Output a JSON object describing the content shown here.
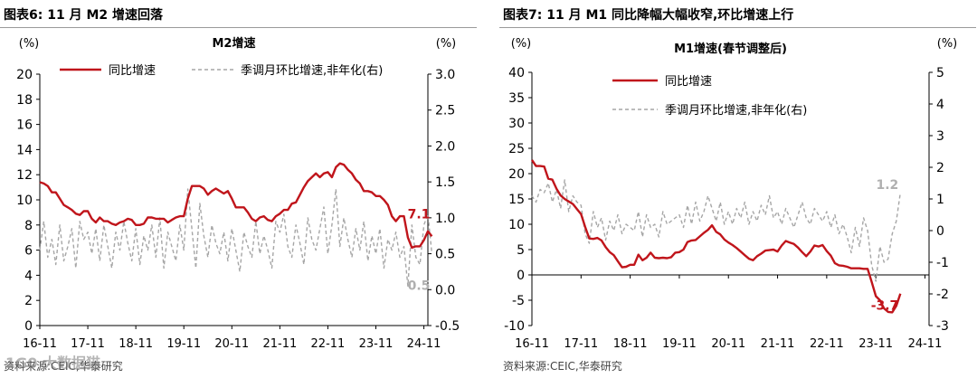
{
  "figures": [
    {
      "figure_title": "图表6:   11 月 M2 增速回落",
      "source": "资料来源:CEIC,华泰研究",
      "chart_data": {
        "type": "line",
        "title": "M2增速",
        "left_unit": "(%)",
        "right_unit": "(%)",
        "ylim": [
          0,
          20
        ],
        "y_ticks": [
          "0",
          "2",
          "4",
          "6",
          "8",
          "10",
          "12",
          "14",
          "16",
          "18",
          "20"
        ],
        "y2lim": [
          -0.5,
          3.0
        ],
        "y2_ticks": [
          "-0.5",
          "0.0",
          "0.5",
          "1.0",
          "1.5",
          "2.0",
          "2.5",
          "3.0"
        ],
        "x_ticks": [
          "16-11",
          "17-11",
          "18-11",
          "19-11",
          "20-11",
          "21-11",
          "22-11",
          "23-11",
          "24-11"
        ],
        "grid": false,
        "legend_position": "top",
        "series": [
          {
            "name": "同比增速",
            "axis": "left",
            "color": "#c0151b",
            "style": "solid",
            "x_start": "2016-11",
            "values": [
              11.4,
              11.3,
              11.1,
              10.6,
              10.6,
              10.1,
              9.6,
              9.4,
              9.2,
              8.9,
              8.8,
              9.1,
              9.1,
              8.5,
              8.2,
              8.6,
              8.3,
              8.3,
              8.1,
              8.0,
              8.2,
              8.3,
              8.5,
              8.4,
              8.0,
              8.0,
              8.1,
              8.6,
              8.6,
              8.5,
              8.5,
              8.5,
              8.2,
              8.4,
              8.6,
              8.7,
              8.7,
              10.1,
              11.1,
              11.1,
              11.1,
              10.9,
              10.4,
              10.7,
              10.9,
              10.7,
              10.5,
              10.7,
              10.1,
              9.4,
              9.4,
              9.4,
              9.0,
              8.5,
              8.3,
              8.6,
              8.7,
              8.4,
              8.3,
              8.7,
              8.9,
              9.2,
              9.2,
              9.7,
              9.8,
              10.4,
              11.0,
              11.5,
              11.8,
              12.1,
              11.8,
              12.1,
              12.2,
              11.8,
              12.6,
              12.9,
              12.8,
              12.4,
              12.1,
              11.6,
              11.3,
              10.7,
              10.7,
              10.6,
              10.3,
              10.3,
              10.0,
              9.6,
              8.7,
              8.3,
              8.7,
              8.7,
              7.0,
              6.2,
              6.3,
              6.3,
              6.8,
              7.5,
              7.1
            ],
            "end_label": "7.1"
          },
          {
            "name": "季调月环比增速,非年化(右)",
            "axis": "right",
            "color": "#a6a6a6",
            "style": "dashed",
            "x_start": "2016-11",
            "values": [
              0.55,
              0.95,
              0.45,
              0.7,
              0.35,
              0.9,
              0.4,
              0.6,
              0.85,
              0.3,
              0.95,
              0.7,
              0.8,
              0.5,
              0.85,
              0.4,
              0.9,
              0.6,
              0.3,
              0.8,
              0.55,
              0.95,
              0.65,
              0.4,
              0.85,
              0.35,
              0.75,
              0.55,
              0.9,
              0.45,
              1.0,
              0.3,
              0.8,
              0.6,
              0.4,
              0.9,
              0.55,
              1.4,
              0.85,
              0.3,
              1.2,
              0.75,
              0.45,
              0.9,
              0.65,
              0.5,
              0.8,
              0.4,
              0.85,
              0.55,
              0.25,
              0.8,
              0.6,
              0.45,
              0.95,
              0.5,
              0.75,
              0.55,
              0.3,
              0.95,
              0.8,
              1.05,
              0.6,
              0.45,
              0.9,
              0.65,
              0.35,
              1.0,
              0.7,
              0.55,
              0.85,
              1.15,
              0.5,
              0.9,
              1.4,
              0.6,
              1.0,
              0.7,
              0.45,
              0.85,
              0.55,
              0.95,
              0.4,
              0.75,
              0.5,
              0.85,
              0.3,
              0.7,
              0.55,
              0.8,
              0.45,
              0.6,
              0.05,
              0.9,
              0.45,
              0.35,
              0.9,
              1.05,
              0.5
            ],
            "end_label": "0.5"
          }
        ]
      }
    },
    {
      "figure_title": "图表7:     11 月 M1 同比降幅大幅收窄,环比增速上行",
      "source": "资料来源:CEIC,华泰研究",
      "chart_data": {
        "type": "line",
        "title": "M1增速(春节调整后)",
        "left_unit": "(%)",
        "right_unit": "(%)",
        "ylim": [
          -10,
          40
        ],
        "y_ticks": [
          "-10",
          "-5",
          "0",
          "5",
          "10",
          "15",
          "20",
          "25",
          "30",
          "35",
          "40"
        ],
        "y2lim": [
          -3,
          5
        ],
        "y2_ticks": [
          "-3",
          "-2",
          "-1",
          "0",
          "1",
          "2",
          "3",
          "4",
          "5"
        ],
        "x_ticks": [
          "16-11",
          "17-11",
          "18-11",
          "19-11",
          "20-11",
          "21-11",
          "22-11",
          "23-11",
          "24-11"
        ],
        "grid": false,
        "legend_position": "top-left",
        "series": [
          {
            "name": "同比增速",
            "axis": "left",
            "color": "#c0151b",
            "style": "solid",
            "x_start": "2016-11",
            "values": [
              22.7,
              21.5,
              21.5,
              21.4,
              19.0,
              18.8,
              17.0,
              15.7,
              15.0,
              14.5,
              14.0,
              13.0,
              12.0,
              9.5,
              7.2,
              7.1,
              7.3,
              6.8,
              5.5,
              4.5,
              3.9,
              2.7,
              1.5,
              1.6,
              2.0,
              2.0,
              4.0,
              2.9,
              3.4,
              4.4,
              3.4,
              3.3,
              3.4,
              3.3,
              3.5,
              4.4,
              4.5,
              5.0,
              6.5,
              6.8,
              6.9,
              7.6,
              8.3,
              8.9,
              9.8,
              8.5,
              8.0,
              7.0,
              6.4,
              5.9,
              5.3,
              4.6,
              3.9,
              3.2,
              2.9,
              3.7,
              4.2,
              4.8,
              4.9,
              5.0,
              4.6,
              5.8,
              6.7,
              6.4,
              6.1,
              5.4,
              4.5,
              3.7,
              4.6,
              5.8,
              5.6,
              5.9,
              4.7,
              3.8,
              2.3,
              1.9,
              1.8,
              1.6,
              1.3,
              1.3,
              1.3,
              1.2,
              1.2,
              -1.4,
              -4.2,
              -5.0,
              -6.6,
              -7.3,
              -7.4,
              -6.1,
              -3.7
            ],
            "end_label": "-3.7"
          },
          {
            "name": "季调月环比增速,非年化(右)",
            "axis": "right",
            "color": "#a6a6a6",
            "style": "dashed",
            "x_start": "2016-11",
            "values": [
              1.1,
              0.9,
              1.3,
              1.2,
              1.5,
              0.9,
              1.3,
              0.7,
              1.6,
              0.6,
              1.1,
              0.9,
              0.8,
              -0.1,
              -0.4,
              0.6,
              0.1,
              0.4,
              -0.3,
              0.3,
              0.0,
              0.5,
              -0.1,
              0.2,
              0.1,
              0.0,
              0.6,
              -0.2,
              0.5,
              0.1,
              0.2,
              -0.2,
              0.6,
              0.2,
              0.3,
              0.4,
              0.5,
              0.1,
              0.8,
              0.2,
              0.9,
              0.3,
              0.6,
              1.1,
              0.7,
              0.3,
              0.9,
              0.2,
              0.6,
              0.2,
              0.7,
              0.4,
              0.9,
              0.2,
              0.6,
              0.3,
              0.8,
              0.5,
              1.1,
              0.4,
              0.6,
              0.2,
              0.7,
              0.4,
              0.1,
              0.5,
              0.9,
              0.4,
              0.2,
              0.7,
              0.5,
              0.3,
              0.6,
              0.1,
              0.5,
              -0.1,
              0.2,
              -0.2,
              -0.7,
              0.1,
              -0.5,
              0.4,
              0.0,
              -1.1,
              -1.6,
              -0.5,
              -1.0,
              -0.9,
              -0.1,
              0.3,
              1.2
            ],
            "end_label": "1.2"
          }
        ]
      }
    }
  ],
  "colors": {
    "primary_line": "#c0151b",
    "secondary_line": "#a6a6a6",
    "axis": "#000000",
    "rule": "#9a9a9a"
  },
  "watermark": "1G0 大数据猫"
}
